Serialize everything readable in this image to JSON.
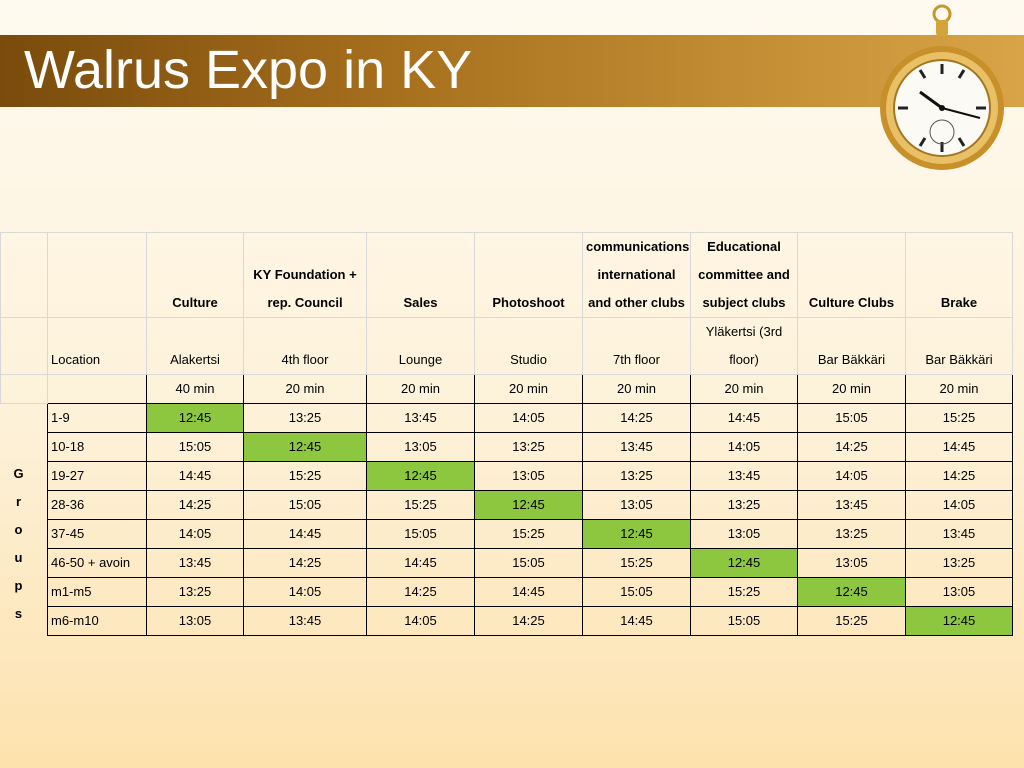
{
  "header": {
    "title": "Walrus Expo in KY"
  },
  "table": {
    "columns": [
      "Culture",
      "KY Foundation + rep. Council",
      "Sales",
      "Photoshoot",
      "communications, international and other clubs",
      "Educational committee and subject clubs",
      "Culture Clubs",
      "Brake"
    ],
    "location_label": "Location",
    "locations": [
      "Alakertsi",
      "4th floor",
      "Lounge",
      "Studio",
      "7th floor",
      "Yläkertsi (3rd floor)",
      "Bar Bäkkäri",
      "Bar Bäkkäri"
    ],
    "durations": [
      "40 min",
      "20 min",
      "20 min",
      "20 min",
      "20 min",
      "20 min",
      "20 min",
      "20 min"
    ],
    "groups_label": "Groups",
    "rows": [
      {
        "group": "1-9",
        "times": [
          "12:45",
          "13:25",
          "13:45",
          "14:05",
          "14:25",
          "14:45",
          "15:05",
          "15:25"
        ]
      },
      {
        "group": "10-18",
        "times": [
          "15:05",
          "12:45",
          "13:05",
          "13:25",
          "13:45",
          "14:05",
          "14:25",
          "14:45"
        ]
      },
      {
        "group": "19-27",
        "times": [
          "14:45",
          "15:25",
          "12:45",
          "13:05",
          "13:25",
          "13:45",
          "14:05",
          "14:25"
        ]
      },
      {
        "group": "28-36",
        "times": [
          "14:25",
          "15:05",
          "15:25",
          "12:45",
          "13:05",
          "13:25",
          "13:45",
          "14:05"
        ]
      },
      {
        "group": "37-45",
        "times": [
          "14:05",
          "14:45",
          "15:05",
          "15:25",
          "12:45",
          "13:05",
          "13:25",
          "13:45"
        ]
      },
      {
        "group": "46-50 + avoin",
        "times": [
          "13:45",
          "14:25",
          "14:45",
          "15:05",
          "15:25",
          "12:45",
          "13:05",
          "13:25"
        ]
      },
      {
        "group": "m1-m5",
        "times": [
          "13:25",
          "14:05",
          "14:25",
          "14:45",
          "15:05",
          "15:25",
          "12:45",
          "13:05"
        ]
      },
      {
        "group": "m6-m10",
        "times": [
          "13:05",
          "13:45",
          "14:05",
          "14:25",
          "14:45",
          "15:05",
          "15:25",
          "12:45"
        ]
      }
    ]
  }
}
